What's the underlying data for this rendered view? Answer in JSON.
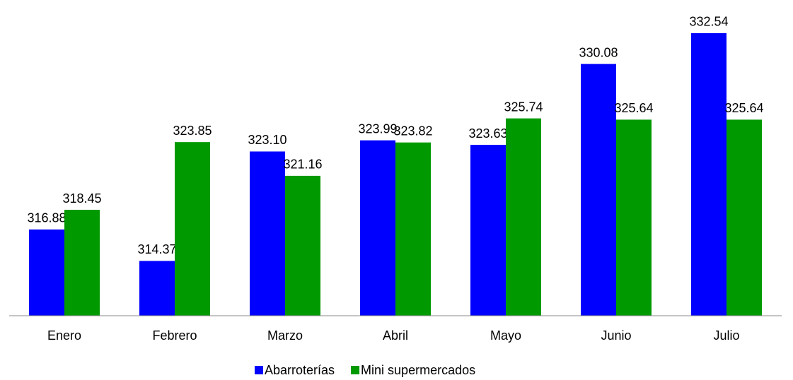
{
  "chart_data": {
    "type": "bar",
    "categories": [
      "Enero",
      "Febrero",
      "Marzo",
      "Abril",
      "Mayo",
      "Junio",
      "Julio"
    ],
    "series": [
      {
        "name": "Abarroterías",
        "color": "#0000ff",
        "values": [
          316.88,
          314.37,
          323.1,
          323.99,
          323.63,
          330.08,
          332.54
        ],
        "value_labels": [
          "316.88",
          "314.37",
          "323.10",
          "323.99",
          "323.63",
          "330.08",
          "332.54"
        ]
      },
      {
        "name": "Mini supermercados",
        "color": "#009a00",
        "values": [
          318.45,
          323.85,
          321.16,
          323.82,
          325.74,
          325.64,
          325.64
        ],
        "value_labels": [
          "318.45",
          "323.85",
          "321.16",
          "323.82",
          "325.74",
          "325.64",
          "325.64"
        ]
      }
    ],
    "ylim": [
      310,
      334
    ],
    "legend": "bottom"
  }
}
